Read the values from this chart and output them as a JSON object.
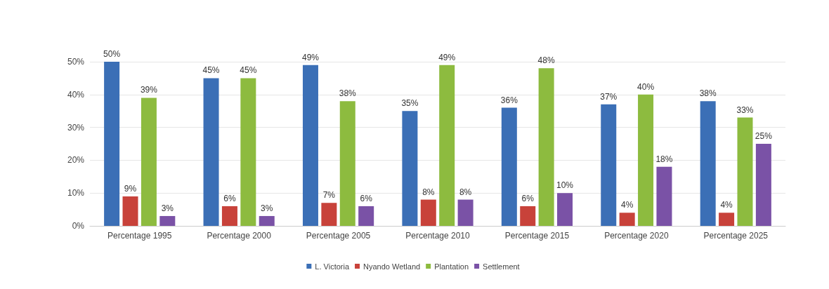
{
  "chart_data": {
    "type": "bar",
    "categories": [
      "Percentage 1995",
      "Percentage 2000",
      "Percentage 2005",
      "Percentage 2010",
      "Percentage 2015",
      "Percentage 2020",
      "Percentage 2025"
    ],
    "series": [
      {
        "name": "L. Victoria",
        "color": "#3b6fb6",
        "values": [
          50,
          45,
          49,
          35,
          36,
          37,
          38
        ],
        "value_labels": [
          "50%",
          "45%",
          "49%",
          "35%",
          "36%",
          "37%",
          "38%"
        ]
      },
      {
        "name": "Nyando Wetland",
        "color": "#c8423a",
        "values": [
          9,
          6,
          7,
          8,
          6,
          4,
          4
        ],
        "value_labels": [
          "9%",
          "6%",
          "7%",
          "8%",
          "6%",
          "4%",
          "4%"
        ]
      },
      {
        "name": "Plantation",
        "color": "#8dbb3f",
        "values": [
          39,
          45,
          38,
          49,
          48,
          40,
          33
        ],
        "value_labels": [
          "39%",
          "45%",
          "38%",
          "49%",
          "48%",
          "40%",
          "33%"
        ]
      },
      {
        "name": "Settlement",
        "color": "#7a52a6",
        "values": [
          3,
          3,
          6,
          8,
          10,
          18,
          25
        ],
        "value_labels": [
          "3%",
          "3%",
          "6%",
          "8%",
          "10%",
          "18%",
          "25%"
        ]
      }
    ],
    "ylim": [
      0,
      50
    ],
    "yticks": [
      {
        "value": 0,
        "label": "0%"
      },
      {
        "value": 10,
        "label": "10%"
      },
      {
        "value": 20,
        "label": "20%"
      },
      {
        "value": 30,
        "label": "30%"
      },
      {
        "value": 40,
        "label": "40%"
      },
      {
        "value": 50,
        "label": "50%"
      }
    ],
    "grid": "y",
    "legend": "bottom"
  }
}
